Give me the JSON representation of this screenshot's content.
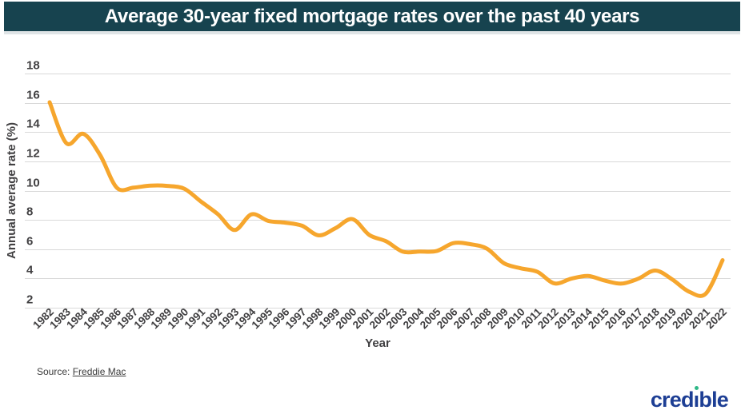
{
  "header": {
    "title": "Average 30-year fixed mortgage rates over the past 40 years",
    "bg_color": "#17434f",
    "text_color": "#ffffff"
  },
  "chart_data": {
    "type": "line",
    "title": "Average 30-year fixed mortgage rates over the past 40 years",
    "xlabel": "Year",
    "ylabel": "Annual average rate (%)",
    "x": [
      1982,
      1983,
      1984,
      1985,
      1986,
      1987,
      1988,
      1989,
      1990,
      1991,
      1992,
      1993,
      1994,
      1995,
      1996,
      1997,
      1998,
      1999,
      2000,
      2001,
      2002,
      2003,
      2004,
      2005,
      2006,
      2007,
      2008,
      2009,
      2010,
      2011,
      2012,
      2013,
      2014,
      2015,
      2016,
      2017,
      2018,
      2019,
      2020,
      2021,
      2022
    ],
    "values": [
      16.04,
      13.24,
      13.88,
      12.43,
      10.19,
      10.21,
      10.34,
      10.32,
      10.13,
      9.25,
      8.39,
      7.31,
      8.38,
      7.93,
      7.81,
      7.6,
      6.94,
      7.44,
      8.05,
      6.97,
      6.54,
      5.83,
      5.84,
      5.87,
      6.41,
      6.34,
      6.03,
      5.04,
      4.69,
      4.45,
      3.66,
      3.98,
      4.17,
      3.85,
      3.65,
      3.99,
      4.54,
      3.94,
      3.1,
      2.96,
      5.25
    ],
    "ylim": [
      2,
      18
    ],
    "yticks": [
      18,
      16,
      14,
      12,
      10,
      8,
      6,
      4,
      2
    ],
    "grid": true,
    "legend": false,
    "line_color": "#f6a62d",
    "grid_color": "#d9d9d9",
    "tick_color": "#414042"
  },
  "footer": {
    "source_prefix": "Source: ",
    "source_link": "Freddie Mac",
    "logo": {
      "part1": "cred",
      "i_glyph": "ı",
      "part2": "ble",
      "full_text": "credible",
      "navy_color": "#1d3e94",
      "dot_color": "#2fb887"
    }
  }
}
